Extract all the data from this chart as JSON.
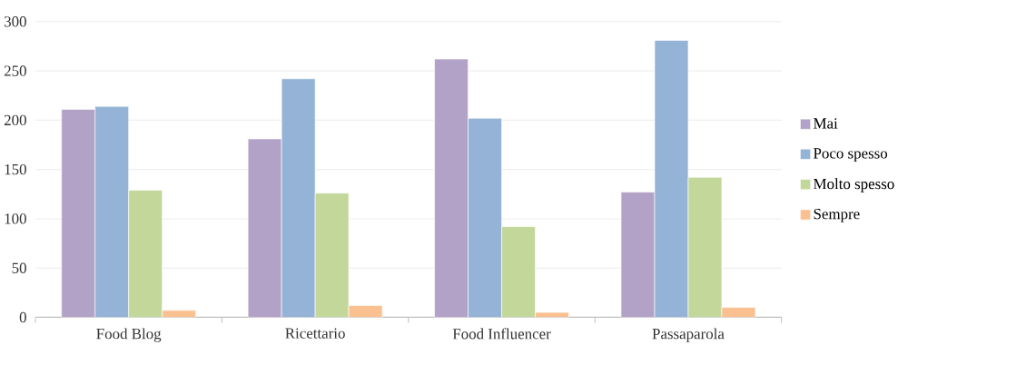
{
  "chart_data": {
    "type": "bar",
    "categories": [
      "Food Blog",
      "Ricettario",
      "Food Influencer",
      "Passaparola"
    ],
    "series": [
      {
        "name": "Mai",
        "color": "#b3a2c7",
        "values": [
          211,
          181,
          262,
          127
        ]
      },
      {
        "name": "Poco spesso",
        "color": "#95b3d7",
        "values": [
          214,
          242,
          202,
          281
        ]
      },
      {
        "name": "Molto spesso",
        "color": "#c4d79b",
        "values": [
          129,
          126,
          92,
          142
        ]
      },
      {
        "name": "Sempre",
        "color": "#fac090",
        "values": [
          7,
          12,
          5,
          10
        ]
      }
    ],
    "ylim": [
      0,
      300
    ],
    "yticks": [
      0,
      50,
      100,
      150,
      200,
      250,
      300
    ],
    "grid": "y",
    "legend": "right"
  }
}
